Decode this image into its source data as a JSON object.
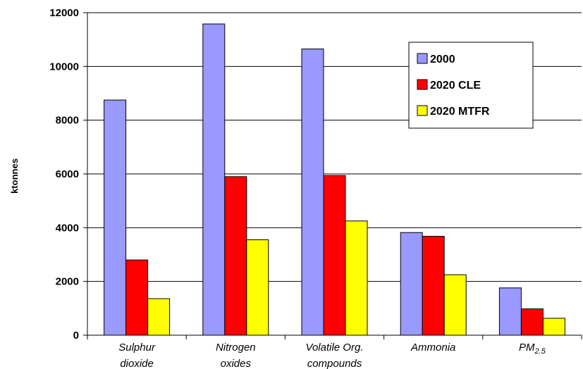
{
  "chart_data": {
    "type": "bar",
    "ylabel": "ktonnes",
    "ylim": [
      0,
      12000
    ],
    "yticks": [
      0,
      2000,
      4000,
      6000,
      8000,
      10000,
      12000
    ],
    "grid": true,
    "legend_position": "top-right",
    "categories": [
      [
        "Sulphur",
        "dioxide"
      ],
      [
        "Nitrogen",
        "oxides"
      ],
      [
        "Volatile Org.",
        "compounds"
      ],
      [
        "Ammonia"
      ],
      [
        "PM",
        "2.5"
      ]
    ],
    "series": [
      {
        "name": "2000",
        "color": "#9999ff",
        "values": [
          8750,
          11580,
          10650,
          3820,
          1760
        ]
      },
      {
        "name": "2020 CLE",
        "color": "#ff0000",
        "values": [
          2800,
          5900,
          5940,
          3680,
          980
        ]
      },
      {
        "name": "2020 MTFR",
        "color": "#ffff00",
        "values": [
          1360,
          3550,
          4250,
          2250,
          630
        ]
      }
    ]
  }
}
